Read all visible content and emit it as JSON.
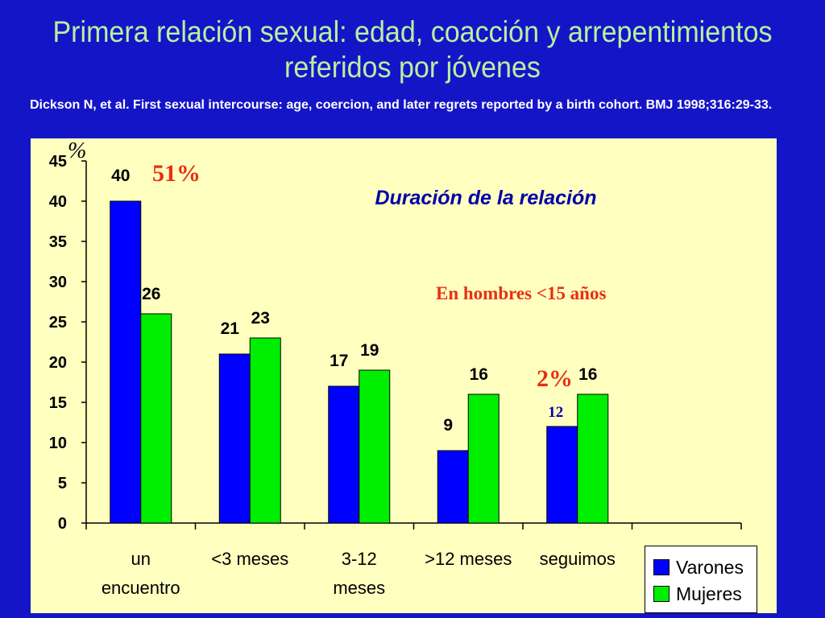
{
  "title": "Primera relación sexual: edad, coacción y arrepentimientos referidos por jóvenes",
  "title_lines": [
    "Primera relación sexual: edad, coacción y arrepentimientos",
    "referidos por jóvenes"
  ],
  "citation": "Dickson N, et al. First sexual intercourse: age, coercion, and later regrets reported by a birth cohort. BMJ 1998;316:29-33.",
  "colors": {
    "background": "#1515c8",
    "title": "#b8f0a0",
    "panel": "#ffffc0",
    "varones": "#0000ff",
    "mujeres": "#00ee00",
    "annotation_red": "#e83010",
    "annotation_blue": "#0000aa"
  },
  "chart_data": {
    "type": "bar",
    "ylabel": "%",
    "ylim": [
      0,
      45
    ],
    "yticks": [
      0,
      5,
      10,
      15,
      20,
      25,
      30,
      35,
      40,
      45
    ],
    "categories": [
      [
        "un",
        "encuentro"
      ],
      [
        "<3 meses"
      ],
      [
        "3-12",
        "meses"
      ],
      [
        ">12 meses"
      ],
      [
        "seguimos"
      ]
    ],
    "series": [
      {
        "name": "Varones",
        "values": [
          40,
          21,
          17,
          9,
          12
        ]
      },
      {
        "name": "Mujeres",
        "values": [
          26,
          23,
          19,
          16,
          16
        ]
      }
    ],
    "annotations": {
      "subtitle": "Duración de la relación",
      "note": "En hombres <15 años",
      "pct_first": "51%",
      "pct_last": "2%"
    },
    "grid": false,
    "legend_position": "bottom-right"
  }
}
